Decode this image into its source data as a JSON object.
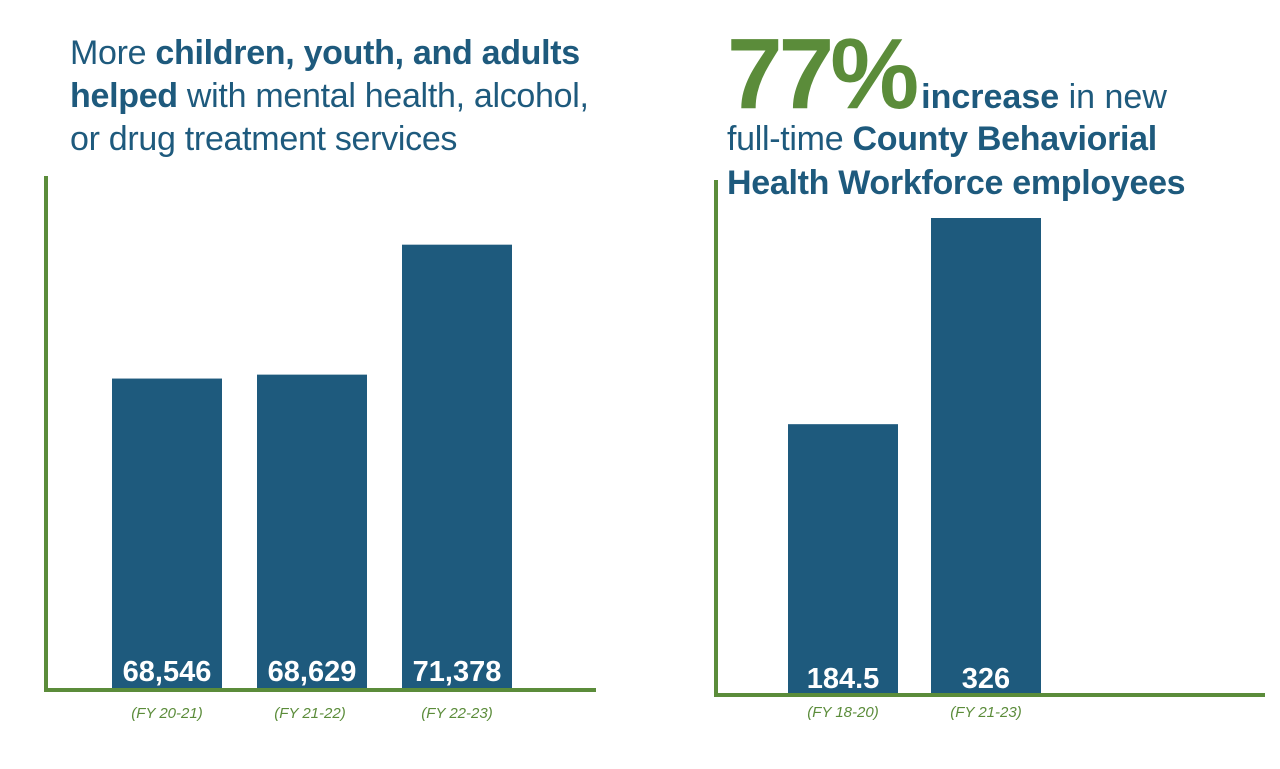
{
  "colors": {
    "bar": "#1e5a7d",
    "axis": "#5b8c3a",
    "text_blue": "#1e5a7d",
    "text_green": "#5b8c3a",
    "bar_label": "#ffffff"
  },
  "left_panel": {
    "title_parts": {
      "p1": "More ",
      "p2": "children, youth, and adults",
      "p3": "helped",
      "p4": " with mental health, alcohol,",
      "p5": "or drug treatment services"
    }
  },
  "right_panel": {
    "stat": "77%",
    "stat_suffix_bold": "increase",
    "stat_suffix": " in new",
    "line2_plain": "full-time ",
    "line2_bold": "County Behaviorial",
    "line3_bold": "Health Workforce employees"
  },
  "chart_data": [
    {
      "type": "bar",
      "categories": [
        "(FY 20-21)",
        "(FY 21-22)",
        "(FY 22-23)"
      ],
      "values": [
        68546,
        68629,
        71378
      ],
      "data_labels": [
        "68,546",
        "68,629",
        "71,378"
      ],
      "title": "More children, youth, and adults helped with mental health, alcohol, or drug treatment services",
      "xlabel": "",
      "ylabel": "",
      "grid": false
    },
    {
      "type": "bar",
      "categories": [
        "(FY 18-20)",
        "(FY 21-23)"
      ],
      "values": [
        184.5,
        326
      ],
      "data_labels": [
        "184.5",
        "326"
      ],
      "title": "77% increase in new full-time County Behaviorial Health Workforce employees",
      "xlabel": "",
      "ylabel": "",
      "grid": false
    }
  ]
}
